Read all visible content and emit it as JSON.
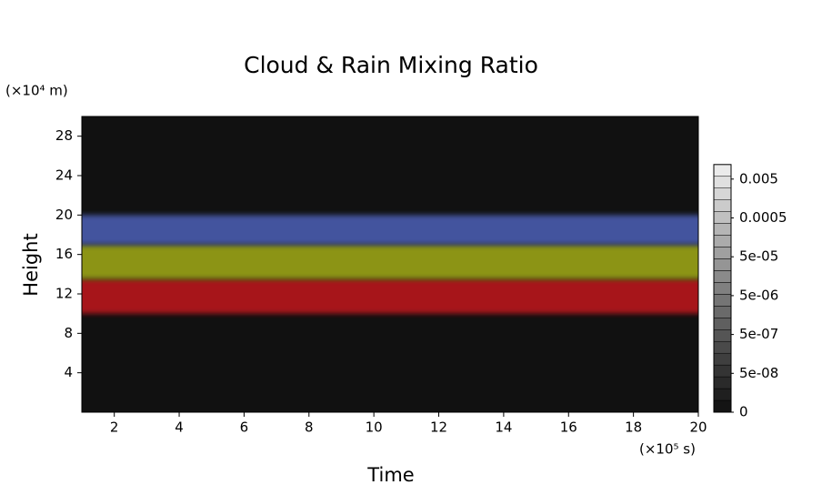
{
  "chart_data": {
    "type": "bands",
    "title": "Cloud & Rain Mixing Ratio",
    "x_label": "Time",
    "y_label": "Height",
    "x_unit": "(×10⁵ s)",
    "y_unit": "(×10⁴ m)",
    "xlim": [
      1,
      20
    ],
    "xticks": [
      2,
      4,
      6,
      8,
      10,
      12,
      14,
      16,
      18,
      20
    ],
    "ylim": [
      0,
      30
    ],
    "yticks": [
      4,
      8,
      12,
      16,
      20,
      24,
      28
    ],
    "background": "#111111",
    "bands": [
      {
        "range": [
          10,
          13.5
        ],
        "color": "#b8141c"
      },
      {
        "range": [
          13.5,
          17
        ],
        "color": "#9aa318"
      },
      {
        "range": [
          17,
          20
        ],
        "color": "#4a5cae"
      }
    ],
    "colorbar": {
      "ticks": [
        {
          "value": 0,
          "label": "0"
        },
        {
          "value": 5e-08,
          "label": "5e-08"
        },
        {
          "value": 5e-07,
          "label": "5e-07"
        },
        {
          "value": 5e-06,
          "label": "5e-06"
        },
        {
          "value": 5e-05,
          "label": "5e-05"
        },
        {
          "value": 0.0005,
          "label": "0.0005"
        },
        {
          "value": 0.005,
          "label": "0.005"
        }
      ]
    }
  }
}
